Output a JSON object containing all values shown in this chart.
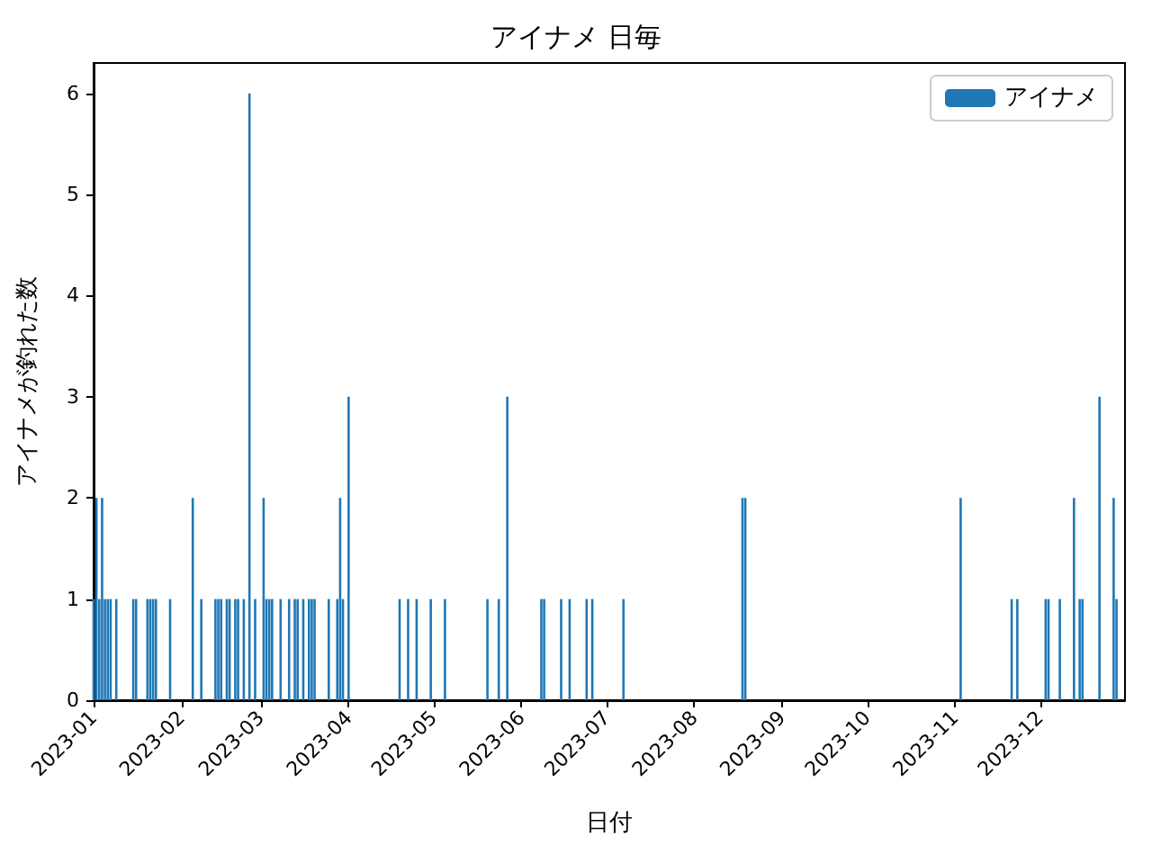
{
  "chart_data": {
    "type": "bar",
    "title": "アイナメ 日毎",
    "xlabel": "日付",
    "ylabel": "アイナメが釣れた数",
    "x": [
      "2023-01-01",
      "2023-01-02",
      "2023-01-03",
      "2023-01-04",
      "2023-01-05",
      "2023-01-06",
      "2023-01-07",
      "2023-01-09",
      "2023-01-15",
      "2023-01-16",
      "2023-01-20",
      "2023-01-21",
      "2023-01-22",
      "2023-01-23",
      "2023-01-28",
      "2023-02-05",
      "2023-02-08",
      "2023-02-13",
      "2023-02-14",
      "2023-02-15",
      "2023-02-17",
      "2023-02-18",
      "2023-02-20",
      "2023-02-21",
      "2023-02-23",
      "2023-02-25",
      "2023-02-27",
      "2023-03-02",
      "2023-03-03",
      "2023-03-04",
      "2023-03-05",
      "2023-03-08",
      "2023-03-11",
      "2023-03-13",
      "2023-03-14",
      "2023-03-16",
      "2023-03-18",
      "2023-03-19",
      "2023-03-20",
      "2023-03-25",
      "2023-03-28",
      "2023-03-29",
      "2023-03-30",
      "2023-04-01",
      "2023-04-19",
      "2023-04-22",
      "2023-04-25",
      "2023-04-30",
      "2023-05-05",
      "2023-05-20",
      "2023-05-24",
      "2023-05-27",
      "2023-06-08",
      "2023-06-09",
      "2023-06-15",
      "2023-06-18",
      "2023-06-24",
      "2023-06-26",
      "2023-07-07",
      "2023-08-18",
      "2023-08-19",
      "2023-11-03",
      "2023-11-21",
      "2023-11-23",
      "2023-12-03",
      "2023-12-04",
      "2023-12-08",
      "2023-12-13",
      "2023-12-15",
      "2023-12-16",
      "2023-12-22",
      "2023-12-27",
      "2023-12-28"
    ],
    "series": [
      {
        "name": "アイナメ",
        "color": "#1f77b4",
        "values": [
          1,
          2,
          1,
          2,
          1,
          1,
          1,
          1,
          1,
          1,
          1,
          1,
          1,
          1,
          1,
          2,
          1,
          1,
          1,
          1,
          1,
          1,
          1,
          1,
          1,
          6,
          1,
          2,
          1,
          1,
          1,
          1,
          1,
          1,
          1,
          1,
          1,
          1,
          1,
          1,
          1,
          2,
          1,
          3,
          1,
          1,
          1,
          1,
          1,
          1,
          1,
          3,
          1,
          1,
          1,
          1,
          1,
          1,
          1,
          2,
          2,
          2,
          1,
          1,
          1,
          1,
          1,
          2,
          1,
          1,
          3,
          2,
          1
        ]
      }
    ],
    "xlim": [
      "2023-01-01",
      "2023-12-31"
    ],
    "xticks": [
      {
        "value": "2023-01-01",
        "label": "2023-01"
      },
      {
        "value": "2023-02-01",
        "label": "2023-02"
      },
      {
        "value": "2023-03-01",
        "label": "2023-03"
      },
      {
        "value": "2023-04-01",
        "label": "2023-04"
      },
      {
        "value": "2023-05-01",
        "label": "2023-05"
      },
      {
        "value": "2023-06-01",
        "label": "2023-06"
      },
      {
        "value": "2023-07-01",
        "label": "2023-07"
      },
      {
        "value": "2023-08-01",
        "label": "2023-08"
      },
      {
        "value": "2023-09-01",
        "label": "2023-09"
      },
      {
        "value": "2023-10-01",
        "label": "2023-10"
      },
      {
        "value": "2023-11-01",
        "label": "2023-11"
      },
      {
        "value": "2023-12-01",
        "label": "2023-12"
      }
    ],
    "ylim": [
      0,
      6.3
    ],
    "yticks": [
      0,
      1,
      2,
      3,
      4,
      5,
      6
    ],
    "grid": false,
    "legend": "top right"
  }
}
